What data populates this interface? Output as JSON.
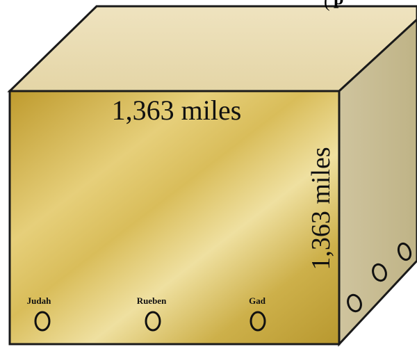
{
  "top_edge_text": "(",
  "top_edge_text_2": "p",
  "front_face": {
    "dimension_label": "1,363 miles"
  },
  "side_face": {
    "dimension_label": "1,363 miles"
  },
  "gates": [
    {
      "name": "Judah"
    },
    {
      "name": "Rueben"
    },
    {
      "name": "Gad"
    }
  ],
  "colors": {
    "top_face": "#eadbb0",
    "front_face_base": "#c9a63c",
    "side_face": "#c8bd95",
    "outline": "#1a1a1a"
  }
}
